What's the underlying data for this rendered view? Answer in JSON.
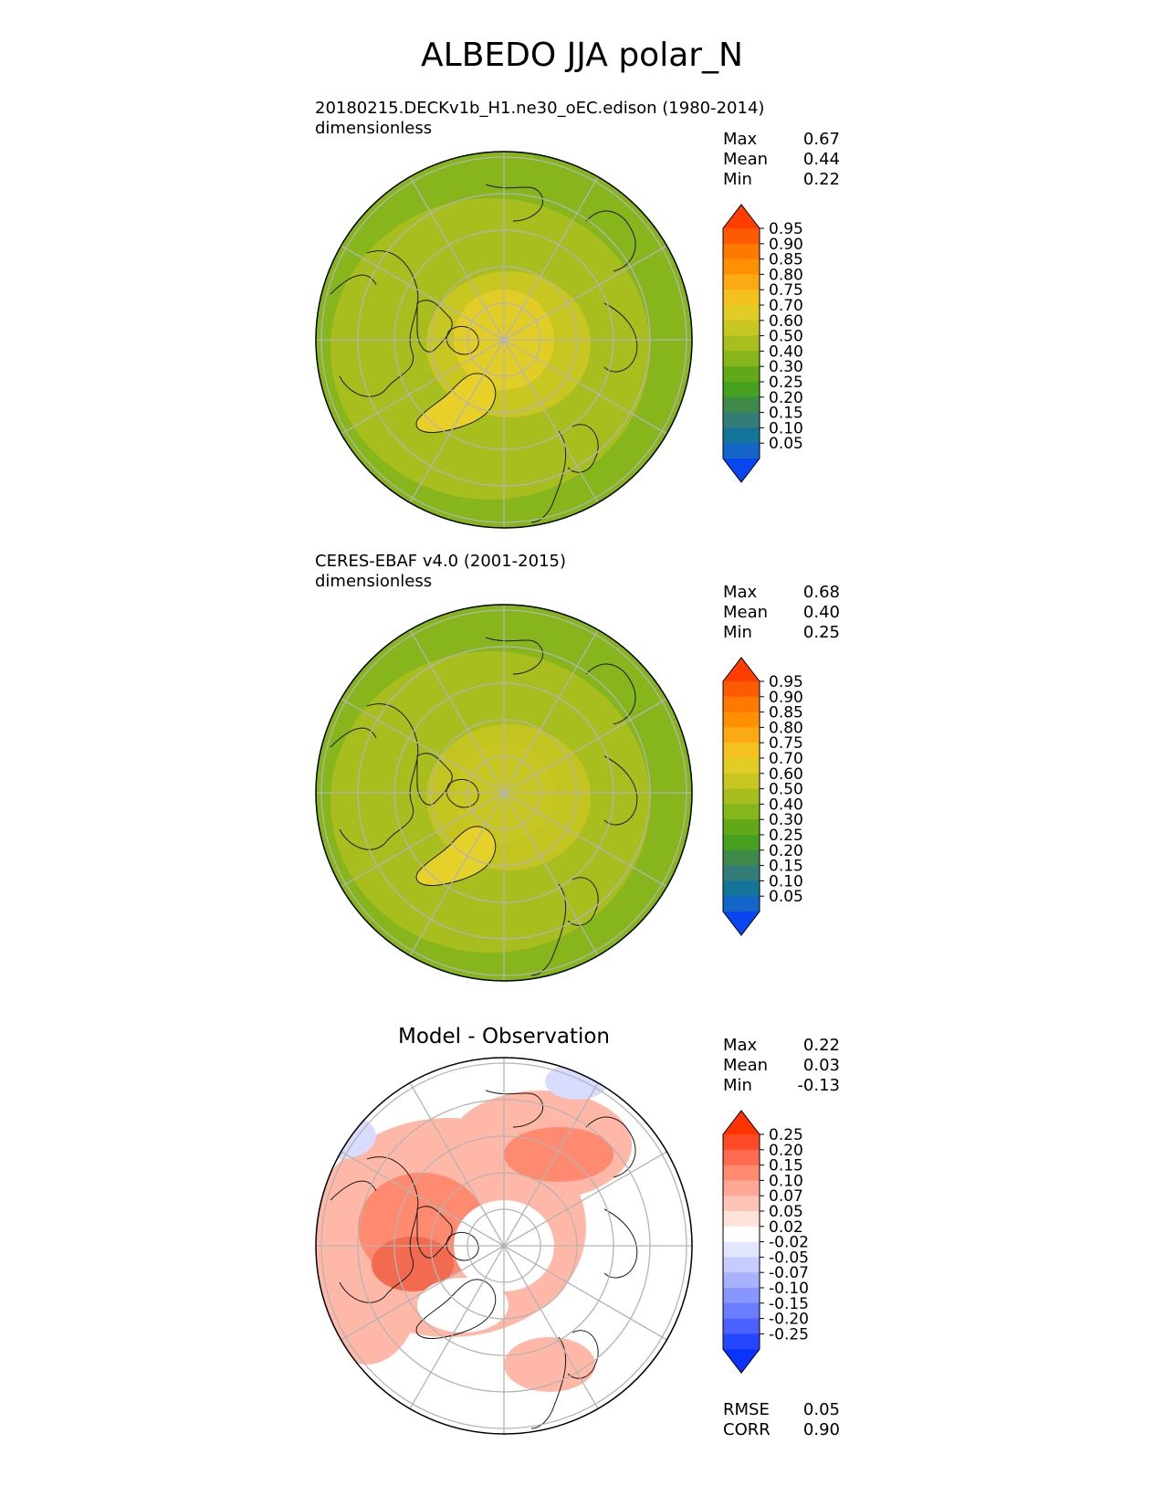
{
  "figure_title": "ALBEDO JJA polar_N",
  "panels": [
    {
      "id": "test",
      "name_line": "20180215.DECKv1b_H1.ne30_oEC.edison (1980-2014)",
      "units_line": "dimensionless",
      "stats": [
        {
          "label": "Max",
          "value": "0.67"
        },
        {
          "label": "Mean",
          "value": "0.44"
        },
        {
          "label": "Min",
          "value": "0.22"
        }
      ]
    },
    {
      "id": "reference",
      "name_line": "CERES-EBAF v4.0 (2001-2015)",
      "units_line": "dimensionless",
      "stats": [
        {
          "label": "Max",
          "value": "0.68"
        },
        {
          "label": "Mean",
          "value": "0.40"
        },
        {
          "label": "Min",
          "value": "0.25"
        }
      ]
    },
    {
      "id": "difference",
      "title": "Model - Observation",
      "stats": [
        {
          "label": "Max",
          "value": "0.22"
        },
        {
          "label": "Mean",
          "value": "0.03"
        },
        {
          "label": "Min",
          "value": "-0.13"
        }
      ],
      "metrics": [
        {
          "label": "RMSE",
          "value": "0.05"
        },
        {
          "label": "CORR",
          "value": "0.90"
        }
      ]
    }
  ],
  "colorbars": {
    "field": {
      "ticks": [
        "0.95",
        "0.90",
        "0.85",
        "0.80",
        "0.75",
        "0.70",
        "0.60",
        "0.50",
        "0.40",
        "0.30",
        "0.25",
        "0.20",
        "0.15",
        "0.10",
        "0.05"
      ],
      "colors_top_to_bottom": [
        "#ff3d00",
        "#ff5a00",
        "#ff7800",
        "#ff9100",
        "#fbaa14",
        "#f4c21e",
        "#e2cd26",
        "#c8c620",
        "#a8bd1e",
        "#86b51c",
        "#62a919",
        "#45a11f",
        "#3f8a48",
        "#337c78",
        "#14749a",
        "#1465c8",
        "#0a46f0"
      ]
    },
    "diff": {
      "ticks": [
        "0.25",
        "0.20",
        "0.15",
        "0.10",
        "0.07",
        "0.05",
        "0.02",
        "-0.02",
        "-0.05",
        "-0.07",
        "-0.10",
        "-0.15",
        "-0.20",
        "-0.25"
      ],
      "colors_top_to_bottom": [
        "#ff3300",
        "#ff4a28",
        "#ff6a50",
        "#ff8a70",
        "#ffa898",
        "#ffc4b8",
        "#ffe2da",
        "#ffffff",
        "#e2e6ff",
        "#c6ccff",
        "#a8b2ff",
        "#8a96ff",
        "#6a7cff",
        "#4a60ff",
        "#2446ff",
        "#0a33ff"
      ]
    }
  },
  "map_fields": {
    "test": {
      "ocean": "#86b51c",
      "mid": "#a8bd1e",
      "arctic": "#c8c620",
      "pole": "#e2cd26",
      "greenland": "#e8d028"
    },
    "reference": {
      "ocean": "#86b51c",
      "mid": "#a8bd1e",
      "arctic": "#c4c420",
      "pole": "#c8c620",
      "greenland": "#e6d02a"
    },
    "difference": {
      "bg": "#ffffff",
      "warm": "#ffb8a8",
      "warm2": "#ff8a70",
      "warm3": "#f26a50",
      "cool": "#d8dcff"
    }
  }
}
